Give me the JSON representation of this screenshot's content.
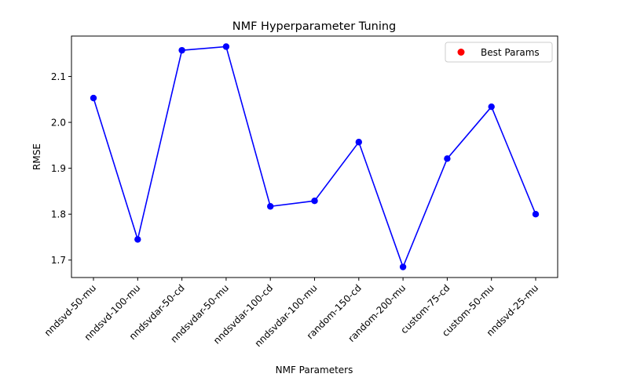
{
  "chart_data": {
    "type": "line",
    "title": "NMF Hyperparameter Tuning",
    "xlabel": "NMF Parameters",
    "ylabel": "RMSE",
    "categories": [
      "nndsvd-50-mu",
      "nndsvd-100-mu",
      "nndsvdar-50-cd",
      "nndsvdar-50-mu",
      "nndsvdar-100-cd",
      "nndsvdar-100-mu",
      "random-150-cd",
      "random-200-mu",
      "custom-75-cd",
      "custom-50-mu",
      "nndsvd-25-mu"
    ],
    "series": [
      {
        "values": [
          2.053,
          1.745,
          2.157,
          2.165,
          1.817,
          1.829,
          1.957,
          1.685,
          1.921,
          2.034,
          1.8
        ],
        "color": "#0000ff"
      }
    ],
    "highlight": {
      "name": "Best Params",
      "color": "#ff0000"
    },
    "yticks": [
      "1.7",
      "1.8",
      "1.9",
      "2.0",
      "2.1"
    ],
    "ylim": [
      1.662,
      2.188
    ],
    "grid": false,
    "legend_position": "upper right"
  }
}
